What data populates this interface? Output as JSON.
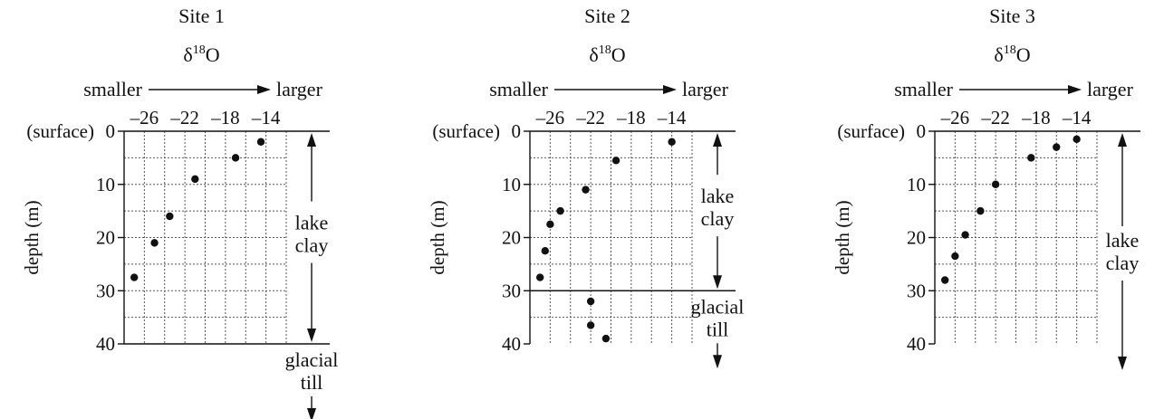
{
  "colors": {
    "ink": "#111111",
    "grid": "#555555",
    "background": "#ffffff"
  },
  "chart_data": [
    {
      "type": "scatter",
      "title": "Site 1",
      "subtitle": "δ18O",
      "scale_label_left": "smaller",
      "scale_label_right": "larger",
      "xlabel": "",
      "ylabel": "depth (m)",
      "surface_label": "(surface)",
      "xlim": [
        -28,
        -12
      ],
      "ylim": [
        0,
        40
      ],
      "x_ticks": [
        "–26",
        "–22",
        "–18",
        "–14"
      ],
      "y_ticks": [
        "0",
        "10",
        "20",
        "30",
        "40"
      ],
      "grid": true,
      "points": [
        {
          "x": -14.5,
          "y": 2
        },
        {
          "x": -17,
          "y": 5
        },
        {
          "x": -21,
          "y": 9
        },
        {
          "x": -23.5,
          "y": 16
        },
        {
          "x": -25,
          "y": 21
        },
        {
          "x": -27,
          "y": 27.5
        }
      ],
      "layers": [
        {
          "label": [
            "lake",
            "clay"
          ],
          "top": 0,
          "bottom": 40
        },
        {
          "label": [
            "glacial",
            "till"
          ],
          "top": 40,
          "bottom": null
        }
      ],
      "boundaries": [
        40
      ]
    },
    {
      "type": "scatter",
      "title": "Site 2",
      "subtitle": "δ18O",
      "scale_label_left": "smaller",
      "scale_label_right": "larger",
      "xlabel": "",
      "ylabel": "depth (m)",
      "surface_label": "(surface)",
      "xlim": [
        -28,
        -12
      ],
      "ylim": [
        0,
        40
      ],
      "x_ticks": [
        "–26",
        "–22",
        "–18",
        "–14"
      ],
      "y_ticks": [
        "0",
        "10",
        "20",
        "30",
        "40"
      ],
      "grid": true,
      "points": [
        {
          "x": -14,
          "y": 2
        },
        {
          "x": -19.5,
          "y": 5.5
        },
        {
          "x": -22.5,
          "y": 11
        },
        {
          "x": -25,
          "y": 15
        },
        {
          "x": -26,
          "y": 17.5
        },
        {
          "x": -26.5,
          "y": 22.5
        },
        {
          "x": -27,
          "y": 27.5
        },
        {
          "x": -22,
          "y": 32
        },
        {
          "x": -22,
          "y": 36.5
        },
        {
          "x": -20.5,
          "y": 39
        }
      ],
      "layers": [
        {
          "label": [
            "lake",
            "clay"
          ],
          "top": 0,
          "bottom": 30
        },
        {
          "label": [
            "glacial",
            "till"
          ],
          "top": 30,
          "bottom": null
        }
      ],
      "boundaries": [
        30
      ]
    },
    {
      "type": "scatter",
      "title": "Site 3",
      "subtitle": "δ18O",
      "scale_label_left": "smaller",
      "scale_label_right": "larger",
      "xlabel": "",
      "ylabel": "depth (m)",
      "surface_label": "(surface)",
      "xlim": [
        -28,
        -12
      ],
      "ylim": [
        0,
        40
      ],
      "x_ticks": [
        "–26",
        "–22",
        "–18",
        "–14"
      ],
      "y_ticks": [
        "0",
        "10",
        "20",
        "30",
        "40"
      ],
      "grid": true,
      "points": [
        {
          "x": -14,
          "y": 1.5
        },
        {
          "x": -16,
          "y": 3
        },
        {
          "x": -18.5,
          "y": 5
        },
        {
          "x": -22,
          "y": 10
        },
        {
          "x": -23.5,
          "y": 15
        },
        {
          "x": -25,
          "y": 19.5
        },
        {
          "x": -26,
          "y": 23.5
        },
        {
          "x": -27,
          "y": 28
        }
      ],
      "layers": [
        {
          "label": [
            "lake",
            "clay"
          ],
          "top": 0,
          "bottom": null
        }
      ],
      "boundaries": []
    }
  ]
}
